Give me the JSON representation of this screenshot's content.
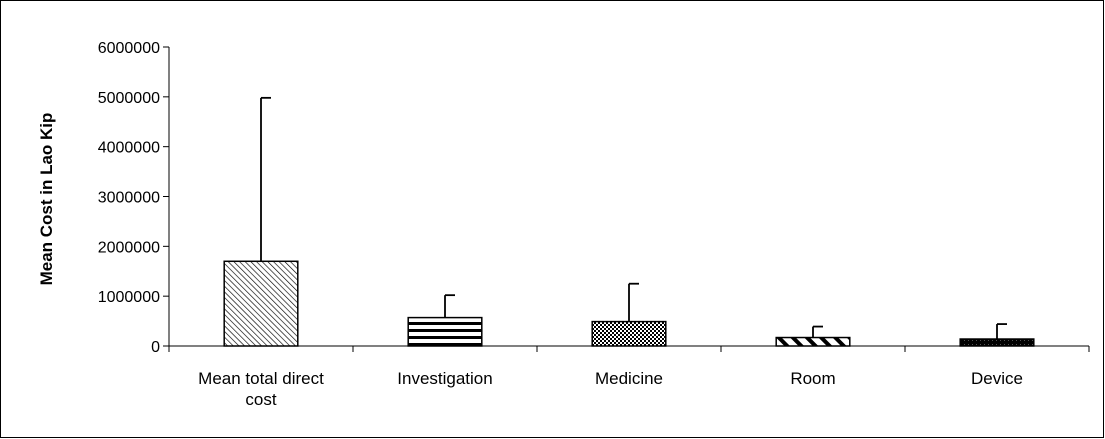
{
  "chart_data": {
    "type": "bar",
    "title": "",
    "xlabel": "",
    "ylabel": "Mean Cost in Lao Kip",
    "ylim": [
      0,
      6000000
    ],
    "yticks": [
      0,
      1000000,
      2000000,
      3000000,
      4000000,
      5000000,
      6000000
    ],
    "yticklabels": [
      "0",
      "1000000",
      "2000000",
      "3000000",
      "4000000",
      "5000000",
      "6000000"
    ],
    "categories": [
      [
        "Mean total direct",
        "cost"
      ],
      [
        "Investigation"
      ],
      [
        "Medicine"
      ],
      [
        "Room"
      ],
      [
        "Device"
      ]
    ],
    "values": [
      1700000,
      570000,
      490000,
      170000,
      140000
    ],
    "error_upper": [
      4980000,
      1020000,
      1250000,
      390000,
      440000
    ],
    "patterns": [
      "diagonal-hatch",
      "horizontal-stripes",
      "crosshatch",
      "wide-diagonal",
      "solid-dark"
    ],
    "grid": false,
    "legend": "none"
  }
}
